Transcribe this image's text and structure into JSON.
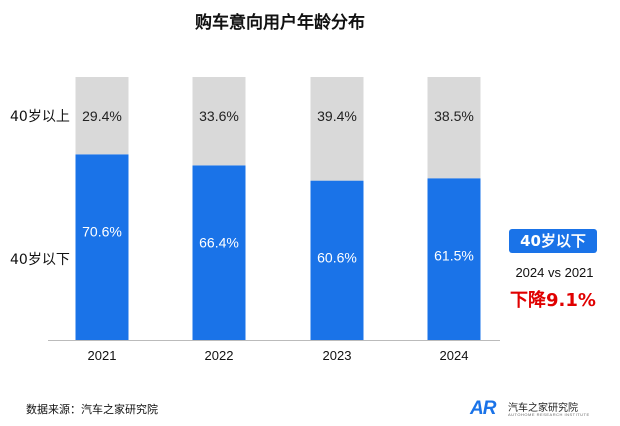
{
  "chart_data": {
    "type": "bar",
    "stacked": true,
    "title": "购车意向用户年龄分布",
    "categories": [
      "2021",
      "2022",
      "2023",
      "2024"
    ],
    "series": [
      {
        "name": "40岁以下",
        "values": [
          70.6,
          66.4,
          60.6,
          61.5
        ],
        "labels": [
          "70.6%",
          "66.4%",
          "60.6%",
          "61.5%"
        ],
        "color": "#1a73e8"
      },
      {
        "name": "40岁以上",
        "values": [
          29.4,
          33.6,
          39.4,
          38.5
        ],
        "labels": [
          "29.4%",
          "33.6%",
          "39.4%",
          "38.5%"
        ],
        "color": "#d9d9d9"
      }
    ],
    "ylim": [
      0,
      100
    ],
    "xlabel": "",
    "ylabel": ""
  },
  "labels": {
    "upper_row": "40岁以上",
    "lower_row": "40岁以下"
  },
  "callout": {
    "badge": "40岁以下",
    "compare": "2024 vs 2021",
    "change": "下降9.1%"
  },
  "footer": {
    "source": "数据来源：汽车之家研究院",
    "logo_mark": "AR",
    "logo_cn": "汽车之家研究院",
    "logo_en": "AUTOHOME RESEARCH INSTITUTE"
  }
}
